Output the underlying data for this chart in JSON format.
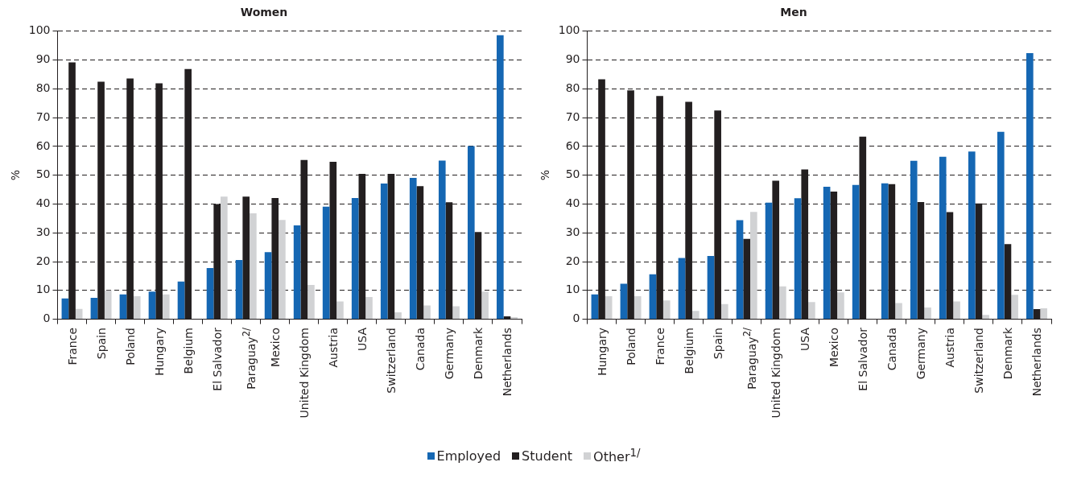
{
  "chart_data": [
    {
      "type": "bar",
      "title": "Women",
      "ylabel": "%",
      "categories": [
        "France",
        "Spain",
        "Poland",
        "Hungary",
        "Belgium",
        "El Salvador",
        "Paraguay$^{2/}$",
        "Mexico",
        "United Kingdom",
        "Austria",
        "USA",
        "Switzerland",
        "Canada",
        "Germany",
        "Denmark",
        "Netherlands"
      ],
      "series": [
        {
          "name": "Employed",
          "color": "#1567b3",
          "values": [
            7.2,
            7.4,
            8.6,
            9.6,
            13.1,
            17.8,
            20.6,
            23.3,
            32.6,
            39.1,
            42.1,
            47.1,
            49.1,
            55.1,
            60.1,
            98.6
          ]
        },
        {
          "name": "Student",
          "color": "#231f20",
          "values": [
            89.2,
            82.5,
            83.6,
            81.9,
            86.9,
            40.0,
            42.6,
            42.1,
            55.3,
            54.7,
            50.5,
            50.5,
            46.2,
            40.6,
            30.3,
            1.0
          ]
        },
        {
          "name": "Other$^{1/}$",
          "color": "#d1d2d4",
          "values": [
            3.6,
            10.0,
            8.0,
            8.6,
            null,
            42.6,
            36.8,
            34.5,
            11.9,
            6.2,
            7.7,
            2.4,
            4.8,
            4.5,
            9.6,
            0.7
          ]
        }
      ],
      "ylim": [
        0,
        100
      ],
      "yticks": [
        0,
        10,
        20,
        30,
        40,
        50,
        60,
        70,
        80,
        90,
        100
      ],
      "grid": "y",
      "legend": "bottom"
    },
    {
      "type": "bar",
      "title": "Men",
      "ylabel": "%",
      "categories": [
        "Hungary",
        "Poland",
        "France",
        "Belgium",
        "Spain",
        "Paraguay$^{2/}$",
        "United Kingdom",
        "USA",
        "Mexico",
        "El Salvador",
        "Canada",
        "Germany",
        "Austria",
        "Switzerland",
        "Denmark",
        "Netherlands"
      ],
      "series": [
        {
          "name": "Employed",
          "color": "#1567b3",
          "values": [
            8.6,
            12.3,
            15.6,
            21.3,
            22.0,
            34.4,
            40.5,
            42.0,
            46.0,
            46.6,
            47.2,
            55.0,
            56.4,
            58.2,
            65.1,
            92.4
          ]
        },
        {
          "name": "Student",
          "color": "#231f20",
          "values": [
            83.3,
            79.5,
            77.5,
            75.5,
            72.5,
            27.9,
            48.1,
            52.0,
            44.3,
            63.4,
            46.9,
            40.7,
            37.2,
            40.2,
            26.1,
            3.5
          ]
        },
        {
          "name": "Other$^{1/}$",
          "color": "#d1d2d4",
          "values": [
            8.0,
            8.0,
            6.5,
            2.9,
            5.3,
            37.3,
            11.4,
            6.0,
            9.3,
            null,
            5.6,
            4.1,
            6.2,
            1.5,
            8.5,
            3.8
          ]
        }
      ],
      "ylim": [
        0,
        100
      ],
      "yticks": [
        0,
        10,
        20,
        30,
        40,
        50,
        60,
        70,
        80,
        90,
        100
      ],
      "grid": "y",
      "legend": "bottom"
    }
  ]
}
